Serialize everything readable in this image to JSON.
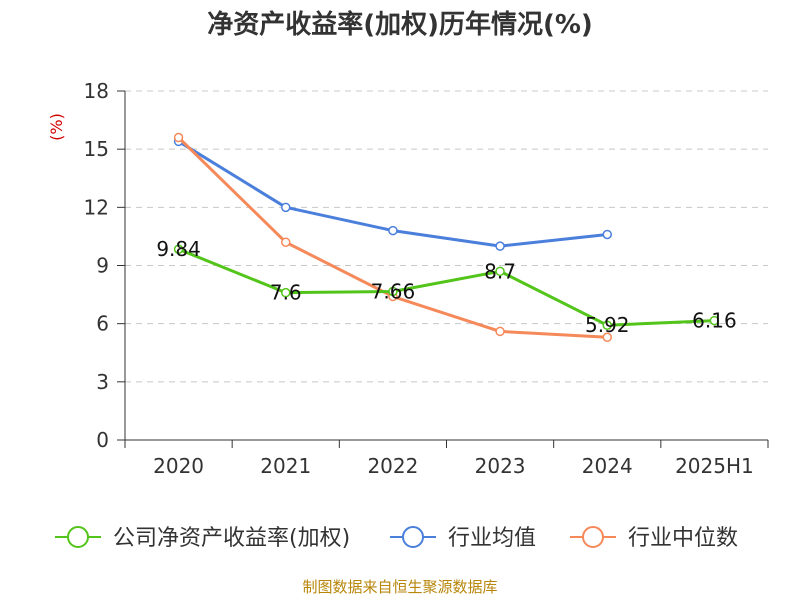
{
  "chart_data": {
    "type": "line",
    "title": "净资产收益率(加权)历年情况(%)",
    "ylabel": "(%)",
    "xlabel": "",
    "categories": [
      "2020",
      "2021",
      "2022",
      "2023",
      "2024",
      "2025H1"
    ],
    "yticks": [
      "0",
      "3",
      "6",
      "9",
      "12",
      "15",
      "18"
    ],
    "ylim": [
      0,
      18
    ],
    "grid": true,
    "legend": "bottom",
    "series": [
      {
        "name": "公司净资产收益率(加权)",
        "color": "#52c41a",
        "values": [
          9.84,
          7.6,
          7.66,
          8.7,
          5.92,
          6.16
        ],
        "labels": [
          "9.84",
          "7.6",
          "7.66",
          "8.7",
          "5.92",
          "6.16"
        ]
      },
      {
        "name": "行业均值",
        "color": "#4a7fdc",
        "values": [
          15.4,
          12.0,
          10.8,
          10.0,
          10.6,
          null
        ]
      },
      {
        "name": "行业中位数",
        "color": "#f5895a",
        "values": [
          15.6,
          10.2,
          7.4,
          5.6,
          5.3,
          null
        ]
      }
    ]
  },
  "footer": {
    "source": "制图数据来自恒生聚源数据库"
  }
}
